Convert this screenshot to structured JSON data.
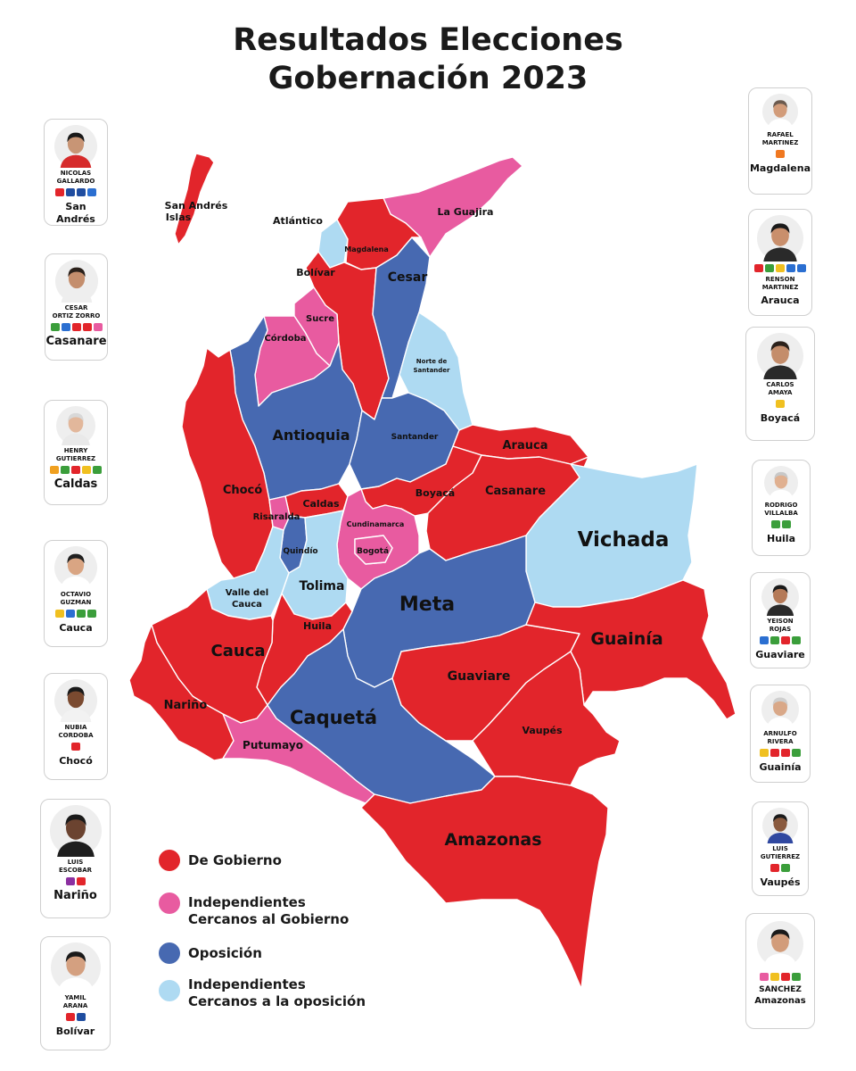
{
  "title": {
    "line1": "Resultados Elecciones",
    "line2": "Gobernación 2023"
  },
  "colors": {
    "gobierno": "#e2252b",
    "independientes_gobierno": "#e85ba0",
    "oposicion": "#4769b1",
    "independientes_oposicion": "#aedaf2"
  },
  "legend": [
    {
      "label": "De Gobierno",
      "color": "#e2252b"
    },
    {
      "label1": "Independientes",
      "label2": "Cercanos al Gobierno",
      "color": "#e85ba0"
    },
    {
      "label": "Oposición",
      "color": "#4769b1"
    },
    {
      "label1": "Independientes",
      "label2": "Cercanos a la oposición",
      "color": "#aedaf2"
    }
  ],
  "map_labels": {
    "san_andres_1": "San Andrés",
    "san_andres_2": "Islas",
    "atlantico": "Atlántico",
    "la_guajira": "La Guajira",
    "magdalena": "Magdalena",
    "bolivar": "Bolívar",
    "cesar": "Cesar",
    "sucre": "Sucre",
    "cordoba": "Córdoba",
    "norte_santander_1": "Norte de",
    "norte_santander_2": "Santander",
    "antioquia": "Antioquia",
    "santander": "Santander",
    "arauca": "Arauca",
    "choco": "Chocó",
    "boyaca": "Boyacá",
    "casanare": "Casanare",
    "caldas": "Caldas",
    "risaralda": "Risaralda",
    "cundinamarca": "Cundinamarca",
    "vichada": "Vichada",
    "quindio": "Quindío",
    "bogota": "Bogotá",
    "tolima": "Tolima",
    "valle_1": "Valle del",
    "valle_2": "Cauca",
    "meta": "Meta",
    "huila": "Huila",
    "cauca": "Cauca",
    "guainia": "Guainía",
    "guaviare": "Guaviare",
    "narino": "Nariño",
    "caqueta": "Caquetá",
    "vaupes": "Vaupés",
    "putumayo": "Putumayo",
    "amazonas": "Amazonas"
  },
  "cards_left": [
    {
      "name1": "NICOLAS",
      "name2": "GALLARDO",
      "dept": "San Andrés",
      "skin": "#c89575",
      "hair": "#1a1a1a",
      "shirt": "#d62b2b",
      "logos": [
        "#e2252b",
        "#1f4da0",
        "#1f4da0",
        "#2b6fd1"
      ]
    },
    {
      "name1": "CESAR",
      "name2": "ORTIZ ZORRO",
      "dept": "Casanare",
      "skin": "#c48e6d",
      "hair": "#2b211b",
      "shirt": "#eeeeee",
      "logos": [
        "#3b9e3b",
        "#2b6fd1",
        "#e2252b",
        "#e2252b",
        "#e85ba0"
      ]
    },
    {
      "name1": "HENRY",
      "name2": "GUTIERREZ",
      "dept": "Caldas",
      "skin": "#e2b79b",
      "hair": "#d8d8d8",
      "shirt": "#e9e9e9",
      "logos": [
        "#f0a020",
        "#3b9e3b",
        "#e2252b",
        "#f0c020",
        "#3b9e3b"
      ]
    },
    {
      "name1": "OCTAVIO",
      "name2": "GUZMAN",
      "dept": "Cauca",
      "skin": "#d9a583",
      "hair": "#202020",
      "shirt": "#ffffff",
      "logos": [
        "#f0c020",
        "#2b6fd1",
        "#3b9e3b",
        "#3b9e3b"
      ]
    },
    {
      "name1": "NUBIA",
      "name2": "CORDOBA",
      "dept": "Chocó",
      "skin": "#7a4a30",
      "hair": "#1a1a1a",
      "shirt": "#f2f2f2",
      "logos": [
        "#e2252b"
      ]
    },
    {
      "name1": "LUIS",
      "name2": "ESCOBAR",
      "dept": "Nariño",
      "skin": "#6b4330",
      "hair": "#1a1a1a",
      "shirt": "#1e1e1e",
      "logos": [
        "#8b2fa0",
        "#e2252b"
      ]
    },
    {
      "name1": "YAMIL",
      "name2": "ARANA",
      "dept": "Bolívar",
      "skin": "#d4a080",
      "hair": "#1a1a1a",
      "shirt": "#ffffff",
      "logos": [
        "#e2252b",
        "#1f4da0"
      ]
    }
  ],
  "cards_right": [
    {
      "name1": "RAFAEL",
      "name2": "MARTINEZ",
      "dept": "Magdalena",
      "skin": "#d29c7a",
      "hair": "#6b5a4e",
      "shirt": "#ffffff",
      "logos": [
        "#f07820"
      ]
    },
    {
      "name1": "RENSON",
      "name2": "MARTINEZ",
      "dept": "Arauca",
      "skin": "#c98f6c",
      "hair": "#1a1a1a",
      "shirt": "#2a2a2a",
      "logos": [
        "#e2252b",
        "#3b9e3b",
        "#f0c020",
        "#2b6fd1",
        "#2b6fd1"
      ]
    },
    {
      "name1": "CARLOS",
      "name2": "AMAYA",
      "dept": "Boyacá",
      "skin": "#c48d6b",
      "hair": "#2b211b",
      "shirt": "#2a2a2a",
      "logos": [
        "#f0c020"
      ]
    },
    {
      "name1": "RODRIGO",
      "name2": "VILLALBA",
      "dept": "Huila",
      "skin": "#e0b090",
      "hair": "#c8c8c8",
      "shirt": "#ffffff",
      "logos": [
        "#3b9e3b",
        "#3b9e3b"
      ]
    },
    {
      "name1": "YEISON",
      "name2": "ROJAS",
      "dept": "Guaviare",
      "skin": "#b57a58",
      "hair": "#1a1a1a",
      "shirt": "#2a2a2a",
      "logos": [
        "#2b6fd1",
        "#3b9e3b",
        "#e2252b",
        "#3b9e3b"
      ]
    },
    {
      "name1": "ARNULFO",
      "name2": "RIVERA",
      "dept": "Guainía",
      "skin": "#d9a888",
      "hair": "#cfcfcf",
      "shirt": "#ffffff",
      "logos": [
        "#f0c020",
        "#e2252b",
        "#e2252b",
        "#3b9e3b"
      ]
    },
    {
      "name1": "LUIS",
      "name2": "GUTIERREZ",
      "dept": "Vaupés",
      "skin": "#8a5a3e",
      "hair": "#1a1a1a",
      "shirt": "#3048a0",
      "logos": [
        "#e2252b",
        "#3b9e3b"
      ]
    },
    {
      "name1": "",
      "name2": "SANCHEZ",
      "dept": "Amazonas",
      "skin": "#d29c7a",
      "hair": "#1a1a1a",
      "shirt": "#ffffff",
      "logos": [
        "#e85ba0",
        "#f0c020",
        "#e2252b",
        "#3b9e3b"
      ]
    }
  ]
}
